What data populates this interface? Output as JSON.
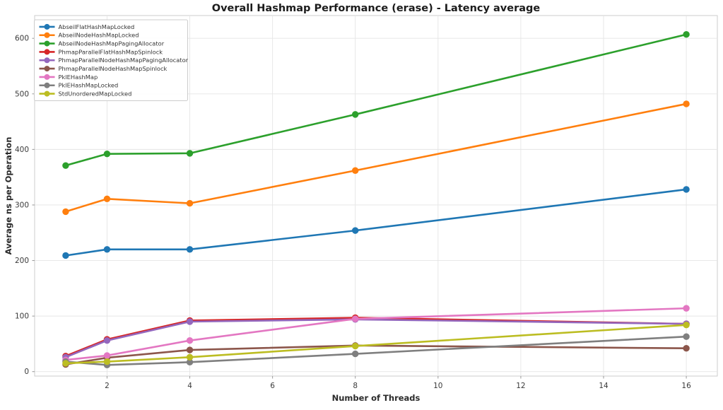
{
  "chart_data": {
    "type": "line",
    "title": "Overall Hashmap Performance (erase) - Latency average",
    "xlabel": "Number of Threads",
    "ylabel": "Average ns per Operation",
    "x": [
      1,
      2,
      4,
      8,
      16
    ],
    "x_ticks": [
      2,
      4,
      6,
      8,
      10,
      12,
      14,
      16
    ],
    "y_ticks": [
      0,
      100,
      200,
      300,
      400,
      500,
      600
    ],
    "xlim": [
      0.25,
      16.75
    ],
    "ylim": [
      -8,
      641
    ],
    "grid": true,
    "legend_position": "upper-left",
    "marker": "circle",
    "series": [
      {
        "name": "AbseilFlatHashMapLocked",
        "color": "#1f77b4",
        "values": [
          209,
          220,
          220,
          254,
          328
        ]
      },
      {
        "name": "AbseilNodeHashMapLocked",
        "color": "#ff7f0e",
        "values": [
          288,
          311,
          303,
          362,
          482
        ]
      },
      {
        "name": "AbseilNodeHashMapPagingAllocator",
        "color": "#2ca02c",
        "values": [
          371,
          392,
          393,
          463,
          607
        ]
      },
      {
        "name": "PhmapParallelFlatHashMapSpinlock",
        "color": "#d62728",
        "values": [
          28,
          58,
          92,
          97,
          86
        ]
      },
      {
        "name": "PhmapParallelNodeHashMapPagingAllocator",
        "color": "#9467bd",
        "values": [
          26,
          56,
          90,
          94,
          86
        ]
      },
      {
        "name": "PhmapParallelNodeHashMapSpinlock",
        "color": "#8c564b",
        "values": [
          13,
          25,
          39,
          47,
          42
        ]
      },
      {
        "name": "PklEHashMap",
        "color": "#e377c2",
        "values": [
          21,
          29,
          56,
          95,
          114
        ]
      },
      {
        "name": "PklEHashMapLocked",
        "color": "#7f7f7f",
        "values": [
          18,
          12,
          17,
          32,
          63
        ]
      },
      {
        "name": "StdUnorderedMapLocked",
        "color": "#bcbd22",
        "values": [
          15,
          18,
          26,
          46,
          84
        ]
      }
    ],
    "styles": {
      "background": "#ffffff",
      "plot_background": "#ffffff",
      "grid_color": "#e5e5e5",
      "spine_color": "#cccccc",
      "tick_color": "#999999"
    }
  }
}
